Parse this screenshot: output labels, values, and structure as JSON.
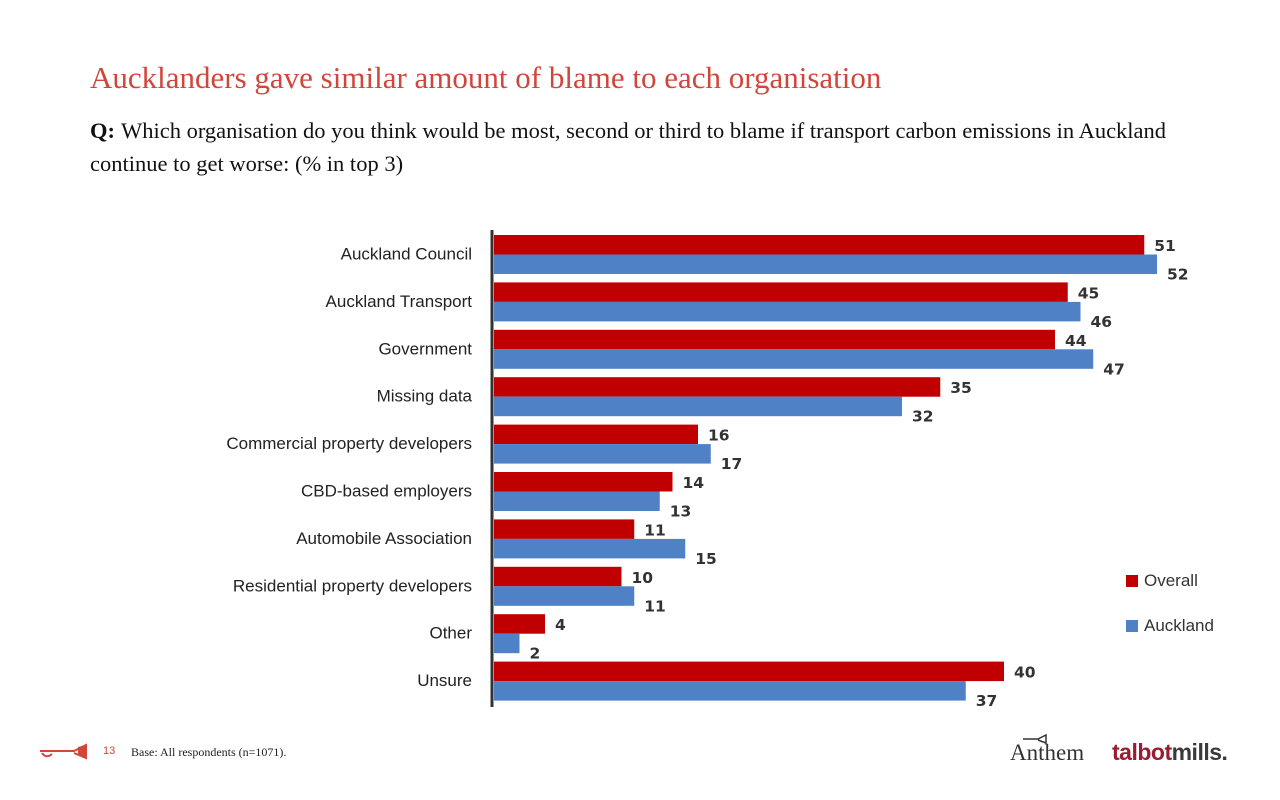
{
  "title": "Aucklanders gave similar amount of blame to each organisation",
  "question": {
    "prefix": "Q:",
    "text": "Which organisation do you think would be most, second or third to blame if transport carbon emissions in Auckland continue to get worse: (% in top 3)"
  },
  "chart_data": {
    "type": "bar",
    "orientation": "horizontal",
    "categories": [
      "Auckland Council",
      "Auckland Transport",
      "Government",
      "Missing data",
      "Commercial property developers",
      "CBD-based employers",
      "Automobile Association",
      "Residential property developers",
      "Other",
      "Unsure"
    ],
    "series": [
      {
        "name": "Overall",
        "color": "#c00000",
        "values": [
          51,
          45,
          44,
          35,
          16,
          14,
          11,
          10,
          4,
          40
        ]
      },
      {
        "name": "Auckland",
        "color": "#4f81c7",
        "values": [
          52,
          46,
          47,
          32,
          17,
          13,
          15,
          11,
          2,
          37
        ]
      }
    ],
    "xlim": [
      0,
      52
    ],
    "grid": false,
    "data_labels": true,
    "legend_position": "right"
  },
  "footer": {
    "page_number": "13",
    "base_note": "Base: All respondents (n=1071)."
  },
  "logos": {
    "anthem": "Anthem",
    "talbot_part1": "talbot",
    "talbot_part2": "mills."
  }
}
